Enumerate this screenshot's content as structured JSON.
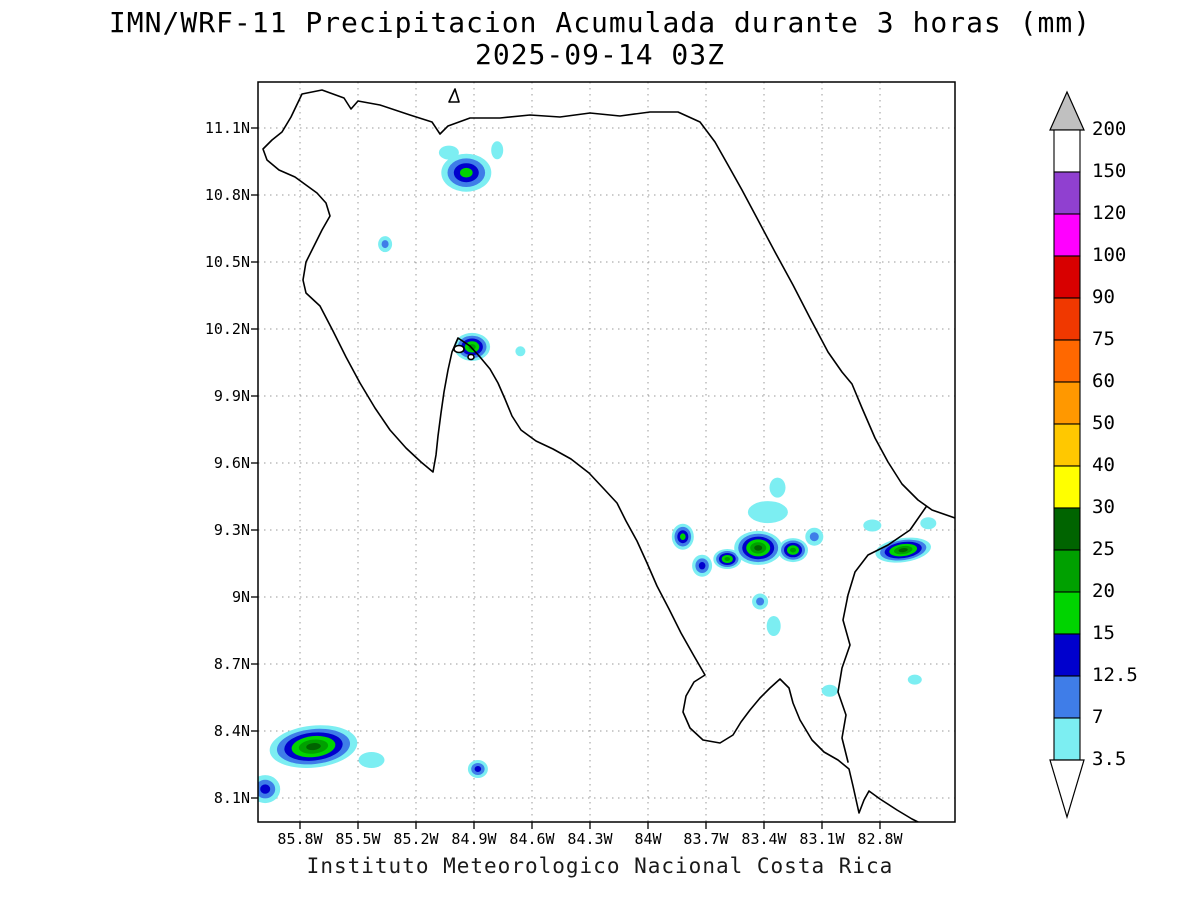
{
  "title": {
    "line1": "IMN/WRF-11 Precipitacion Acumulada durante 3 horas (mm)",
    "line2": "2025-09-14 03Z"
  },
  "footer": "Instituto Meteorologico Nacional Costa Rica",
  "axes": {
    "lat_labels": [
      "11.1N",
      "10.8N",
      "10.5N",
      "10.2N",
      "9.9N",
      "9.6N",
      "9.3N",
      "9N",
      "8.7N",
      "8.4N",
      "8.1N"
    ],
    "lon_labels": [
      "85.8W",
      "85.5W",
      "85.2W",
      "84.9W",
      "84.6W",
      "84.3W",
      "84W",
      "83.7W",
      "83.4W",
      "83.1W",
      "82.8W"
    ]
  },
  "colorbar": {
    "labels": [
      "200",
      "150",
      "120",
      "100",
      "90",
      "75",
      "60",
      "50",
      "40",
      "30",
      "25",
      "20",
      "15",
      "12.5",
      "7",
      "3.5"
    ],
    "segment_colors_top_to_bottom": [
      "#ffffff",
      "#9040d0",
      "#ff00ff",
      "#d80000",
      "#f03800",
      "#ff6800",
      "#ff9800",
      "#ffc800",
      "#ffff00",
      "#006400",
      "#00a000",
      "#00d400",
      "#0000cd",
      "#3f7de8",
      "#7ceef2"
    ],
    "arrow_top_color": "#c0c0c0",
    "arrow_bottom_color": "#ffffff"
  },
  "chart_data": {
    "type": "heatmap",
    "title": "IMN/WRF-11 Precipitacion Acumulada durante 3 horas (mm)",
    "valid_time": "2025-09-14 03Z",
    "units": "mm",
    "region": "Costa Rica",
    "lat_range_n": [
      8.1,
      11.1
    ],
    "lon_range_w": [
      85.8,
      82.8
    ],
    "grid": "dotted",
    "legend_position": "right-colorbar",
    "levels_mm": [
      3.5,
      7,
      12.5,
      15,
      20,
      25,
      30,
      40,
      50,
      60,
      75,
      90,
      100,
      120,
      150,
      200
    ],
    "blob_levels": [
      3.5,
      7,
      12.5,
      15,
      20,
      25
    ],
    "level_color_map": {
      "3.5": "#7ceef2",
      "7": "#3f7de8",
      "12.5": "#0000cd",
      "15": "#00d400",
      "20": "#00a000",
      "25": "#006400"
    },
    "features": [
      {
        "lon_w": 84.94,
        "lat_n": 10.9,
        "rx": 25,
        "ry": 19,
        "peak": 15
      },
      {
        "lon_w": 85.03,
        "lat_n": 10.99,
        "rx": 10,
        "ry": 7,
        "peak": 3.5
      },
      {
        "lon_w": 84.78,
        "lat_n": 11.0,
        "rx": 6,
        "ry": 9,
        "peak": 3.5
      },
      {
        "lon_w": 85.36,
        "lat_n": 10.58,
        "rx": 7,
        "ry": 8,
        "peak": 7
      },
      {
        "lon_w": 84.91,
        "lat_n": 10.12,
        "rx": 18,
        "ry": 14,
        "peak": 20
      },
      {
        "lon_w": 84.66,
        "lat_n": 10.1,
        "rx": 5,
        "ry": 5,
        "peak": 3.5
      },
      {
        "lon_w": 83.82,
        "lat_n": 9.27,
        "rx": 11,
        "ry": 13,
        "peak": 15
      },
      {
        "lon_w": 83.72,
        "lat_n": 9.14,
        "rx": 10,
        "ry": 11,
        "peak": 12.5
      },
      {
        "lon_w": 83.59,
        "lat_n": 9.17,
        "rx": 14,
        "ry": 10,
        "peak": 20
      },
      {
        "lon_w": 83.43,
        "lat_n": 9.22,
        "rx": 24,
        "ry": 17,
        "peak": 25
      },
      {
        "lon_w": 83.25,
        "lat_n": 9.21,
        "rx": 15,
        "ry": 12,
        "peak": 20
      },
      {
        "lon_w": 83.38,
        "lat_n": 9.38,
        "rx": 20,
        "ry": 11,
        "peak": 3.5
      },
      {
        "lon_w": 83.33,
        "lat_n": 9.49,
        "rx": 8,
        "ry": 10,
        "peak": 3.5
      },
      {
        "lon_w": 83.14,
        "lat_n": 9.27,
        "rx": 9,
        "ry": 9,
        "peak": 7
      },
      {
        "lon_w": 82.68,
        "lat_n": 9.21,
        "rx": 28,
        "ry": 12,
        "peak": 25,
        "rot": -8
      },
      {
        "lon_w": 82.84,
        "lat_n": 9.32,
        "rx": 9,
        "ry": 6,
        "peak": 3.5
      },
      {
        "lon_w": 82.55,
        "lat_n": 9.33,
        "rx": 8,
        "ry": 6,
        "peak": 3.5
      },
      {
        "lon_w": 83.42,
        "lat_n": 8.98,
        "rx": 8,
        "ry": 8,
        "peak": 7
      },
      {
        "lon_w": 83.35,
        "lat_n": 8.87,
        "rx": 7,
        "ry": 10,
        "peak": 3.5
      },
      {
        "lon_w": 83.06,
        "lat_n": 8.58,
        "rx": 8,
        "ry": 6,
        "peak": 3.5
      },
      {
        "lon_w": 82.62,
        "lat_n": 8.63,
        "rx": 7,
        "ry": 5,
        "peak": 3.5
      },
      {
        "lon_w": 85.73,
        "lat_n": 8.33,
        "rx": 44,
        "ry": 21,
        "peak": 25,
        "rot": -6
      },
      {
        "lon_w": 85.43,
        "lat_n": 8.27,
        "rx": 13,
        "ry": 8,
        "peak": 3.5
      },
      {
        "lon_w": 85.98,
        "lat_n": 8.14,
        "rx": 15,
        "ry": 14,
        "peak": 12.5
      },
      {
        "lon_w": 84.88,
        "lat_n": 8.23,
        "rx": 10,
        "ry": 9,
        "peak": 12.5
      }
    ]
  }
}
